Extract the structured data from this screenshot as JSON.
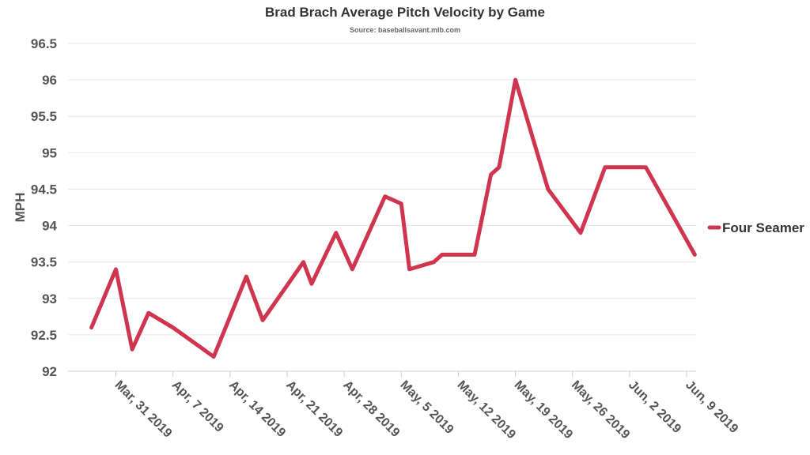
{
  "chart_data": {
    "type": "line",
    "title": "Brad Brach Average Pitch Velocity by Game",
    "subtitle": "Source: baseballsavant.mlb.com",
    "xlabel": "",
    "ylabel": "MPH",
    "ylim": [
      92,
      96.5
    ],
    "yticks": [
      "92",
      "92.5",
      "93",
      "93.5",
      "94",
      "94.5",
      "95",
      "95.5",
      "96",
      "96.5"
    ],
    "xlim": [
      "2019-03-26",
      "2019-06-09"
    ],
    "xticks": [
      {
        "date": "2019-03-31",
        "label": "Mar, 31 2019"
      },
      {
        "date": "2019-04-07",
        "label": "Apr, 7 2019"
      },
      {
        "date": "2019-04-14",
        "label": "Apr, 14 2019"
      },
      {
        "date": "2019-04-21",
        "label": "Apr, 21 2019"
      },
      {
        "date": "2019-04-28",
        "label": "Apr, 28 2019"
      },
      {
        "date": "2019-05-05",
        "label": "May, 5 2019"
      },
      {
        "date": "2019-05-12",
        "label": "May, 12 2019"
      },
      {
        "date": "2019-05-19",
        "label": "May, 19 2019"
      },
      {
        "date": "2019-05-26",
        "label": "May, 26 2019"
      },
      {
        "date": "2019-06-02",
        "label": "Jun, 2 2019"
      },
      {
        "date": "2019-06-09",
        "label": "Jun, 9 2019"
      }
    ],
    "grid": true,
    "legend": "right",
    "series": [
      {
        "name": "Four Seamer",
        "color": "#d0354f",
        "points": [
          {
            "x": "2019-03-28",
            "y": 92.6
          },
          {
            "x": "2019-03-31",
            "y": 93.4
          },
          {
            "x": "2019-04-02",
            "y": 92.3
          },
          {
            "x": "2019-04-04",
            "y": 92.8
          },
          {
            "x": "2019-04-07",
            "y": 92.6
          },
          {
            "x": "2019-04-12",
            "y": 92.2
          },
          {
            "x": "2019-04-16",
            "y": 93.3
          },
          {
            "x": "2019-04-18",
            "y": 92.7
          },
          {
            "x": "2019-04-23",
            "y": 93.5
          },
          {
            "x": "2019-04-24",
            "y": 93.2
          },
          {
            "x": "2019-04-27",
            "y": 93.9
          },
          {
            "x": "2019-04-29",
            "y": 93.4
          },
          {
            "x": "2019-05-03",
            "y": 94.4
          },
          {
            "x": "2019-05-05",
            "y": 94.3
          },
          {
            "x": "2019-05-06",
            "y": 93.4
          },
          {
            "x": "2019-05-09",
            "y": 93.5
          },
          {
            "x": "2019-05-10",
            "y": 93.6
          },
          {
            "x": "2019-05-14",
            "y": 93.6
          },
          {
            "x": "2019-05-16",
            "y": 94.7
          },
          {
            "x": "2019-05-17",
            "y": 94.8
          },
          {
            "x": "2019-05-19",
            "y": 96.0
          },
          {
            "x": "2019-05-23",
            "y": 94.5
          },
          {
            "x": "2019-05-27",
            "y": 93.9
          },
          {
            "x": "2019-05-30",
            "y": 94.8
          },
          {
            "x": "2019-06-04",
            "y": 94.8
          },
          {
            "x": "2019-06-10",
            "y": 93.6
          }
        ]
      }
    ]
  }
}
